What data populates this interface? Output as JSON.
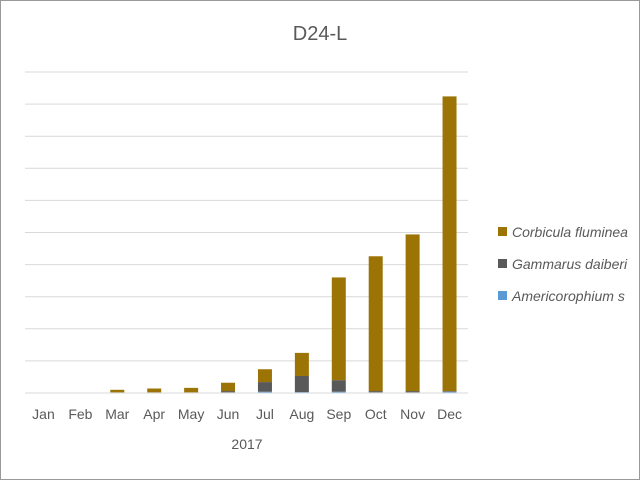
{
  "chart_data": {
    "type": "bar",
    "stacked": true,
    "title": "D24-L",
    "x_group_label": "2017",
    "categories": [
      "Jan",
      "Feb",
      "Mar",
      "Apr",
      "May",
      "Jun",
      "Jul",
      "Aug",
      "Sep",
      "Oct",
      "Nov",
      "Dec"
    ],
    "series": [
      {
        "name": "Americorophium s",
        "color": "#5b9bd5",
        "values": [
          0,
          0,
          0.5,
          0.5,
          0.5,
          1,
          2,
          1.5,
          2,
          1,
          1,
          2
        ]
      },
      {
        "name": "Gammarus daiberi",
        "color": "#595959",
        "values": [
          0,
          0,
          0.5,
          0.5,
          0.5,
          2,
          15,
          25,
          18,
          2,
          2,
          1
        ]
      },
      {
        "name": "Corbicula fluminea",
        "color": "#9c7406",
        "values": [
          0,
          0,
          4,
          6,
          7,
          13,
          20,
          36,
          160,
          210,
          244,
          459
        ]
      }
    ],
    "ylim": [
      0,
      500
    ],
    "yticks": [
      0,
      50,
      100,
      150,
      200,
      250,
      300,
      350,
      400,
      450,
      500
    ],
    "grid": true,
    "legend_position": "right",
    "legend_order": [
      "Corbicula fluminea",
      "Gammarus daiberi",
      "Americorophium s"
    ]
  }
}
